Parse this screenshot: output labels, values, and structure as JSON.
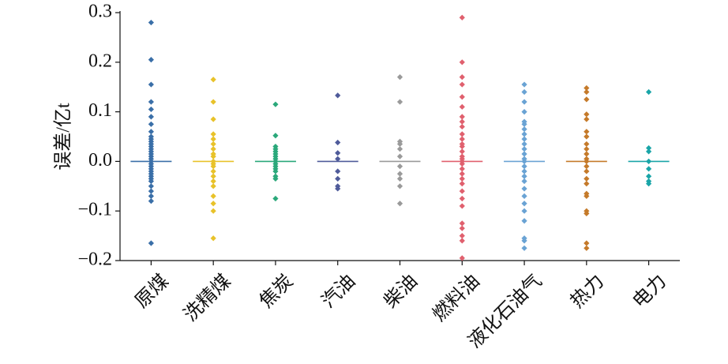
{
  "chart_data": {
    "type": "strip",
    "y_label": "误差/亿t",
    "categories": [
      "原煤",
      "洗精煤",
      "焦炭",
      "汽油",
      "柴油",
      "燃料油",
      "液化石油气",
      "热力",
      "电力"
    ],
    "colors": [
      "#3a6fa8",
      "#e8c22a",
      "#2aa87a",
      "#4f5b9a",
      "#9a9a9a",
      "#e0606e",
      "#6aa3d4",
      "#c57a2a",
      "#1aa5a8"
    ],
    "values": [
      [
        0.28,
        0.205,
        0.155,
        0.12,
        0.105,
        0.09,
        0.075,
        0.06,
        0.05,
        0.045,
        0.04,
        0.035,
        0.03,
        0.025,
        0.02,
        0.015,
        0.01,
        0.005,
        0,
        -0.005,
        -0.01,
        -0.015,
        -0.02,
        -0.025,
        -0.03,
        -0.035,
        -0.04,
        -0.05,
        -0.06,
        -0.07,
        -0.08,
        -0.165
      ],
      [
        0.165,
        0.12,
        0.085,
        0.055,
        0.045,
        0.035,
        0.025,
        0.015,
        0.01,
        0,
        -0.005,
        -0.01,
        -0.02,
        -0.03,
        -0.04,
        -0.05,
        -0.07,
        -0.085,
        -0.1,
        -0.155
      ],
      [
        0.115,
        0.052,
        0.03,
        0.025,
        0.02,
        0.015,
        0.01,
        0.005,
        0,
        -0.005,
        -0.01,
        -0.015,
        -0.02,
        -0.03,
        -0.035,
        -0.075
      ],
      [
        0.133,
        0.038,
        0.017,
        0.005,
        -0.02,
        -0.035,
        -0.05,
        -0.055
      ],
      [
        0.17,
        0.12,
        0.04,
        0.035,
        0.025,
        0.01,
        -0.01,
        -0.025,
        -0.035,
        -0.05,
        -0.085
      ],
      [
        0.29,
        0.2,
        0.17,
        0.155,
        0.13,
        0.11,
        0.09,
        0.08,
        0.07,
        0.055,
        0.045,
        0.035,
        0.03,
        0.02,
        0.01,
        0.005,
        0,
        -0.005,
        -0.015,
        -0.025,
        -0.035,
        -0.045,
        -0.06,
        -0.075,
        -0.09,
        -0.125,
        -0.135,
        -0.15,
        -0.16,
        -0.195
      ],
      [
        0.155,
        0.14,
        0.12,
        0.1,
        0.08,
        0.075,
        0.065,
        0.055,
        0.045,
        0.035,
        0.025,
        0.015,
        0.005,
        0,
        -0.01,
        -0.02,
        -0.03,
        -0.04,
        -0.055,
        -0.07,
        -0.085,
        -0.1,
        -0.12,
        -0.155,
        -0.16,
        -0.175
      ],
      [
        0.148,
        0.14,
        0.125,
        0.095,
        0.085,
        0.06,
        0.05,
        0.035,
        0.025,
        0.015,
        0.005,
        0,
        -0.01,
        -0.02,
        -0.035,
        -0.045,
        -0.065,
        -0.07,
        -0.1,
        -0.105,
        -0.165,
        -0.175
      ],
      [
        0.14,
        0.027,
        0.02,
        0,
        -0.015,
        -0.03,
        -0.04,
        -0.045
      ]
    ],
    "medians": [
      0,
      0,
      0,
      0,
      0,
      0,
      0,
      0,
      0
    ],
    "ylim": [
      -0.2,
      0.3
    ],
    "yticks": [
      {
        "value": -0.2,
        "label": "−0.2"
      },
      {
        "value": -0.1,
        "label": "−0.1"
      },
      {
        "value": 0,
        "label": "0.0"
      },
      0.1,
      0.2,
      0.3
    ]
  }
}
